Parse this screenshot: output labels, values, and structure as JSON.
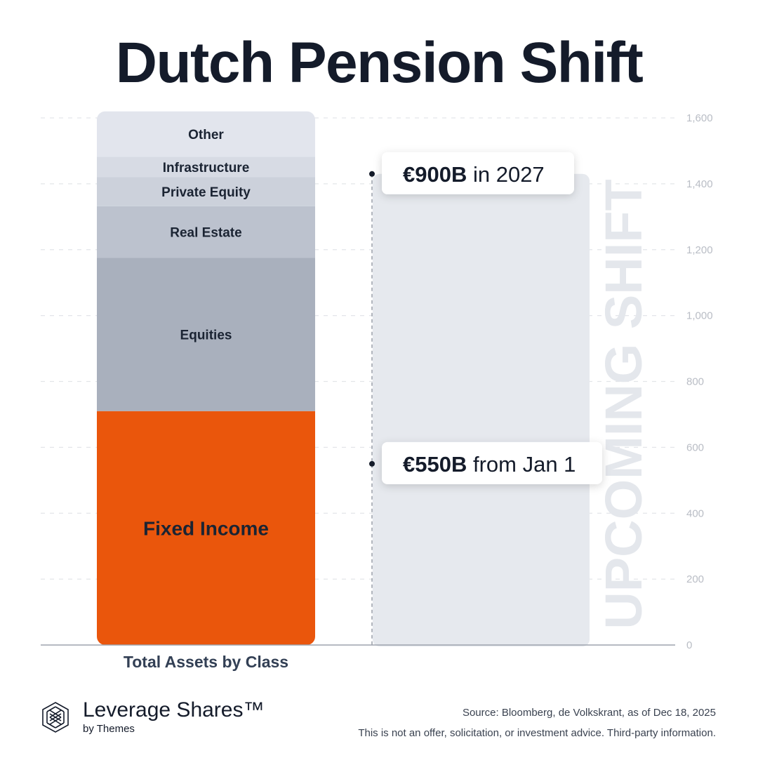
{
  "title": "Dutch Pension Shift",
  "chart_data": {
    "type": "bar",
    "stacked": true,
    "xlabel": "Total Assets by Class",
    "ylim": [
      0,
      1600
    ],
    "yticks": [
      0,
      200,
      400,
      600,
      800,
      1000,
      1200,
      1400,
      1600
    ],
    "ytick_labels": [
      "0",
      "200",
      "400",
      "600",
      "800",
      "1,000",
      "1,200",
      "1,400",
      "1,600"
    ],
    "grid": true,
    "segments": [
      {
        "name": "Fixed Income",
        "value": 710,
        "color": "#ea560c"
      },
      {
        "name": "Equities",
        "value": 465,
        "color": "#a9b0bd"
      },
      {
        "name": "Real Estate",
        "value": 157,
        "color": "#bcc2ce"
      },
      {
        "name": "Private Equity",
        "value": 88,
        "color": "#ccd1db"
      },
      {
        "name": "Infrastructure",
        "value": 62,
        "color": "#d7dbe4"
      },
      {
        "name": "Other",
        "value": 138,
        "color": "#e2e5ed"
      }
    ],
    "shift_bar": {
      "value": 1430,
      "color": "#e6e9ee",
      "watermark": "UPCOMING SHIFT"
    },
    "annotations": [
      {
        "value": 1430,
        "bold": "€900B",
        "text": " in 2027"
      },
      {
        "value": 550,
        "bold": "€550B",
        "text": " from Jan 1"
      }
    ]
  },
  "brand": {
    "name": "Leverage Shares™",
    "sub": "by Themes"
  },
  "footer": {
    "source": "Source: Bloomberg, de Volkskrant, as of Dec 18, 2025",
    "disclaimer": "This is not an offer, solicitation, or investment advice. Third-party information."
  }
}
